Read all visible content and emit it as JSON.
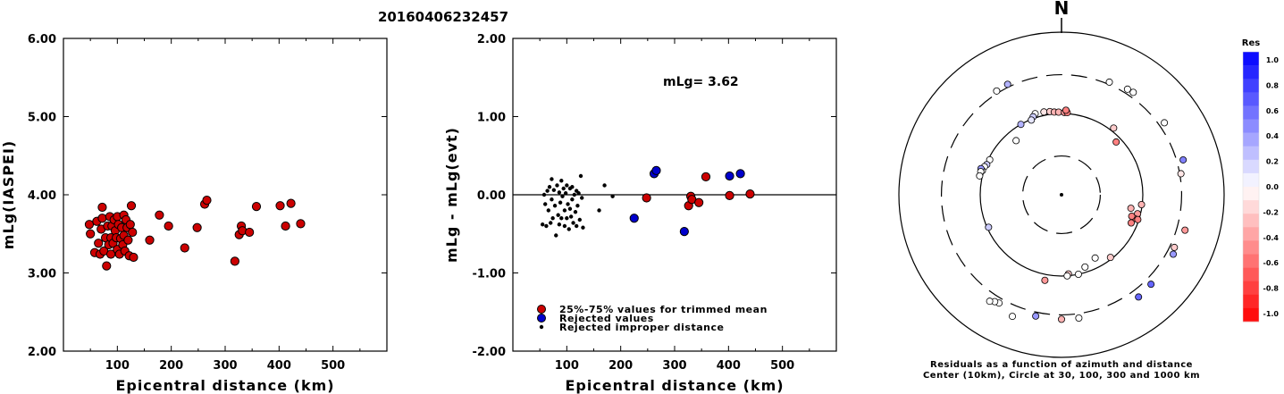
{
  "title": "20160406232457",
  "chart_data": [
    {
      "type": "scatter",
      "title": "",
      "xlabel": "Epicentral distance (km)",
      "ylabel": "mLg(IASPEI)",
      "xlim": [
        0,
        600
      ],
      "ylim": [
        2.0,
        6.0
      ],
      "xticks": [
        100,
        200,
        300,
        400,
        500
      ],
      "xtick_labels": [
        "100",
        "200",
        "300",
        "400",
        "500"
      ],
      "yticks": [
        2.0,
        3.0,
        4.0,
        5.0,
        6.0
      ],
      "ytick_labels": [
        "2.00",
        "3.00",
        "4.00",
        "5.00",
        "6.00"
      ],
      "grid": false,
      "series": [
        {
          "color": "#cc0000",
          "points": [
            [
              48,
              3.62
            ],
            [
              50,
              3.5
            ],
            [
              58,
              3.26
            ],
            [
              62,
              3.66
            ],
            [
              65,
              3.38
            ],
            [
              68,
              3.24
            ],
            [
              70,
              3.56
            ],
            [
              72,
              3.84
            ],
            [
              72,
              3.7
            ],
            [
              75,
              3.28
            ],
            [
              78,
              3.45
            ],
            [
              80,
              3.09
            ],
            [
              82,
              3.6
            ],
            [
              84,
              3.36
            ],
            [
              86,
              3.72
            ],
            [
              88,
              3.45
            ],
            [
              88,
              3.24
            ],
            [
              90,
              3.6
            ],
            [
              92,
              3.38
            ],
            [
              94,
              3.68
            ],
            [
              96,
              3.54
            ],
            [
              98,
              3.45
            ],
            [
              100,
              3.72
            ],
            [
              100,
              3.3
            ],
            [
              102,
              3.62
            ],
            [
              104,
              3.24
            ],
            [
              106,
              3.44
            ],
            [
              108,
              3.58
            ],
            [
              110,
              3.36
            ],
            [
              112,
              3.74
            ],
            [
              112,
              3.48
            ],
            [
              114,
              3.28
            ],
            [
              116,
              3.68
            ],
            [
              118,
              3.58
            ],
            [
              120,
              3.42
            ],
            [
              122,
              3.22
            ],
            [
              124,
              3.62
            ],
            [
              126,
              3.86
            ],
            [
              128,
              3.52
            ],
            [
              130,
              3.2
            ],
            [
              160,
              3.42
            ],
            [
              178,
              3.74
            ],
            [
              195,
              3.6
            ],
            [
              225,
              3.32
            ],
            [
              248,
              3.58
            ],
            [
              262,
              3.88
            ],
            [
              266,
              3.93
            ],
            [
              318,
              3.15
            ],
            [
              326,
              3.49
            ],
            [
              330,
              3.6
            ],
            [
              332,
              3.54
            ],
            [
              345,
              3.52
            ],
            [
              358,
              3.85
            ],
            [
              402,
              3.86
            ],
            [
              412,
              3.6
            ],
            [
              422,
              3.89
            ],
            [
              440,
              3.63
            ]
          ]
        }
      ]
    },
    {
      "type": "scatter",
      "title": "",
      "xlabel": "Epicentral distance (km)",
      "ylabel": "mLg - mLg(evt)",
      "xlim": [
        0,
        600
      ],
      "ylim": [
        -2.0,
        2.0
      ],
      "xticks": [
        100,
        200,
        300,
        400,
        500
      ],
      "xtick_labels": [
        "100",
        "200",
        "300",
        "400",
        "500"
      ],
      "yticks": [
        -2.0,
        -1.0,
        0.0,
        1.0,
        2.0
      ],
      "ytick_labels": [
        "-2.00",
        "-1.00",
        "0.00",
        "1.00",
        "2.00"
      ],
      "grid": false,
      "annotation": "mLg= 3.62",
      "reference_line": 0.0,
      "legend": [
        "25%-75% values for trimmed mean",
        "Rejected values",
        "Rejected improper distance"
      ],
      "legend_position": "lower-left",
      "series": [
        {
          "name": "25%-75% values for trimmed mean",
          "color": "#cc0000",
          "points": [
            [
              248,
              -0.04
            ],
            [
              326,
              -0.14
            ],
            [
              330,
              -0.02
            ],
            [
              332,
              -0.06
            ],
            [
              345,
              -0.1
            ],
            [
              358,
              0.23
            ],
            [
              402,
              -0.01
            ],
            [
              440,
              0.01
            ]
          ]
        },
        {
          "name": "Rejected values",
          "color": "#0000cc",
          "points": [
            [
              225,
              -0.3
            ],
            [
              262,
              0.27
            ],
            [
              266,
              0.31
            ],
            [
              318,
              -0.47
            ],
            [
              402,
              0.24
            ],
            [
              422,
              0.27
            ]
          ]
        },
        {
          "name": "Rejected improper distance",
          "color": "#000000",
          "points": [
            [
              55,
              -0.38
            ],
            [
              58,
              0.0
            ],
            [
              60,
              -0.12
            ],
            [
              62,
              -0.4
            ],
            [
              64,
              0.05
            ],
            [
              66,
              -0.2
            ],
            [
              68,
              0.1
            ],
            [
              70,
              -0.36
            ],
            [
              72,
              0.2
            ],
            [
              72,
              -0.06
            ],
            [
              74,
              -0.3
            ],
            [
              76,
              0.06
            ],
            [
              78,
              -0.14
            ],
            [
              80,
              -0.52
            ],
            [
              82,
              0.12
            ],
            [
              84,
              -0.26
            ],
            [
              86,
              0.03
            ],
            [
              86,
              -0.38
            ],
            [
              88,
              -0.1
            ],
            [
              90,
              0.18
            ],
            [
              90,
              -0.3
            ],
            [
              92,
              -0.02
            ],
            [
              94,
              0.08
            ],
            [
              96,
              -0.4
            ],
            [
              96,
              -0.2
            ],
            [
              98,
              0.02
            ],
            [
              100,
              -0.3
            ],
            [
              100,
              0.12
            ],
            [
              102,
              -0.12
            ],
            [
              104,
              -0.44
            ],
            [
              106,
              0.08
            ],
            [
              106,
              -0.18
            ],
            [
              108,
              -0.28
            ],
            [
              110,
              0.1
            ],
            [
              110,
              -0.06
            ],
            [
              112,
              -0.36
            ],
            [
              114,
              0.0
            ],
            [
              116,
              -0.22
            ],
            [
              118,
              0.05
            ],
            [
              118,
              -0.4
            ],
            [
              120,
              -0.14
            ],
            [
              122,
              0.02
            ],
            [
              124,
              -0.32
            ],
            [
              126,
              0.24
            ],
            [
              128,
              -0.04
            ],
            [
              130,
              -0.42
            ],
            [
              160,
              -0.2
            ],
            [
              170,
              0.12
            ],
            [
              185,
              -0.02
            ]
          ]
        }
      ]
    },
    {
      "type": "scatter",
      "title": "N",
      "caption_line1": "Residuals as a function of azimuth and distance",
      "caption_line2": "Center (10km), Circle at 30, 100, 300 and 1000 km",
      "rings_km": [
        30,
        100,
        300,
        1000
      ],
      "colorbar": {
        "title": "Res",
        "ticks": [
          "1.0",
          "0.8",
          "0.6",
          "0.4",
          "0.2",
          "0.0",
          "-0.2",
          "-0.4",
          "-0.6",
          "-0.8",
          "-1.0"
        ],
        "positive_color": "#0000ff",
        "negative_color": "#ff0000"
      },
      "stations": [
        {
          "az": 32,
          "dist": 340,
          "res": 0.0
        },
        {
          "az": 35,
          "dist": 345,
          "res": 0.0
        },
        {
          "az": 23,
          "dist": 320,
          "res": 0.0
        },
        {
          "az": 328,
          "dist": 320,
          "res": 0.0
        },
        {
          "az": 334,
          "dist": 325,
          "res": 0.3
        },
        {
          "az": 348,
          "dist": 110,
          "res": -0.1
        },
        {
          "az": 352,
          "dist": 108,
          "res": -0.2
        },
        {
          "az": 355,
          "dist": 105,
          "res": -0.3
        },
        {
          "az": 358,
          "dist": 104,
          "res": -0.3
        },
        {
          "az": 2,
          "dist": 103,
          "res": -0.4
        },
        {
          "az": 4,
          "dist": 103,
          "res": -0.5
        },
        {
          "az": 3,
          "dist": 110,
          "res": -0.5
        },
        {
          "az": 342,
          "dist": 112,
          "res": 0.0
        },
        {
          "az": 340,
          "dist": 105,
          "res": 0.2
        },
        {
          "az": 338,
          "dist": 98,
          "res": 0.1
        },
        {
          "az": 330,
          "dist": 100,
          "res": 0.3
        },
        {
          "az": 320,
          "dist": 74,
          "res": 0.0
        },
        {
          "az": 296,
          "dist": 96,
          "res": 0.0
        },
        {
          "az": 292,
          "dist": 98,
          "res": 0.2
        },
        {
          "az": 290,
          "dist": 102,
          "res": 0.0
        },
        {
          "az": 287,
          "dist": 104,
          "res": 0.0
        },
        {
          "az": 288,
          "dist": 110,
          "res": 0.4
        },
        {
          "az": 286,
          "dist": 108,
          "res": 0.0
        },
        {
          "az": 283,
          "dist": 108,
          "res": 0.0
        },
        {
          "az": 46,
          "dist": 86,
          "res": -0.5
        },
        {
          "az": 38,
          "dist": 110,
          "res": -0.2
        },
        {
          "az": 55,
          "dist": 350,
          "res": 0.0
        },
        {
          "az": 74,
          "dist": 360,
          "res": 0.5
        },
        {
          "az": 80,
          "dist": 310,
          "res": -0.1
        },
        {
          "az": 97,
          "dist": 98,
          "res": -0.3
        },
        {
          "az": 104,
          "dist": 92,
          "res": -0.4
        },
        {
          "az": 108,
          "dist": 88,
          "res": -0.6
        },
        {
          "az": 107,
          "dist": 80,
          "res": -0.5
        },
        {
          "az": 101,
          "dist": 74,
          "res": -0.3
        },
        {
          "az": 112,
          "dist": 84,
          "res": -0.5
        },
        {
          "az": 108,
          "dist": 97,
          "res": -0.5
        },
        {
          "az": 106,
          "dist": 380,
          "res": -0.4
        },
        {
          "az": 115,
          "dist": 340,
          "res": -0.2
        },
        {
          "az": 118,
          "dist": 360,
          "res": 0.4
        },
        {
          "az": 135,
          "dist": 360,
          "res": 0.6
        },
        {
          "az": 143,
          "dist": 375,
          "res": 0.6
        },
        {
          "az": 142,
          "dist": 95,
          "res": -0.2
        },
        {
          "az": 152,
          "dist": 76,
          "res": 0.0
        },
        {
          "az": 162,
          "dist": 86,
          "res": 0.0
        },
        {
          "az": 168,
          "dist": 100,
          "res": 0.0
        },
        {
          "az": 175,
          "dist": 95,
          "res": -0.2
        },
        {
          "az": 180,
          "dist": 340,
          "res": -0.3
        },
        {
          "az": 176,
          "dist": 100,
          "res": 0.0
        },
        {
          "az": 172,
          "dist": 340,
          "res": 0.0
        },
        {
          "az": 192,
          "dist": 335,
          "res": 0.4
        },
        {
          "az": 210,
          "dist": 345,
          "res": 0.0
        },
        {
          "az": 212,
          "dist": 355,
          "res": 0.0
        },
        {
          "az": 214,
          "dist": 380,
          "res": 0.0
        },
        {
          "az": 246,
          "dist": 96,
          "res": 0.2
        },
        {
          "az": 191,
          "dist": 118,
          "res": -0.4
        },
        {
          "az": 202,
          "dist": 410,
          "res": 0.0
        }
      ]
    }
  ]
}
